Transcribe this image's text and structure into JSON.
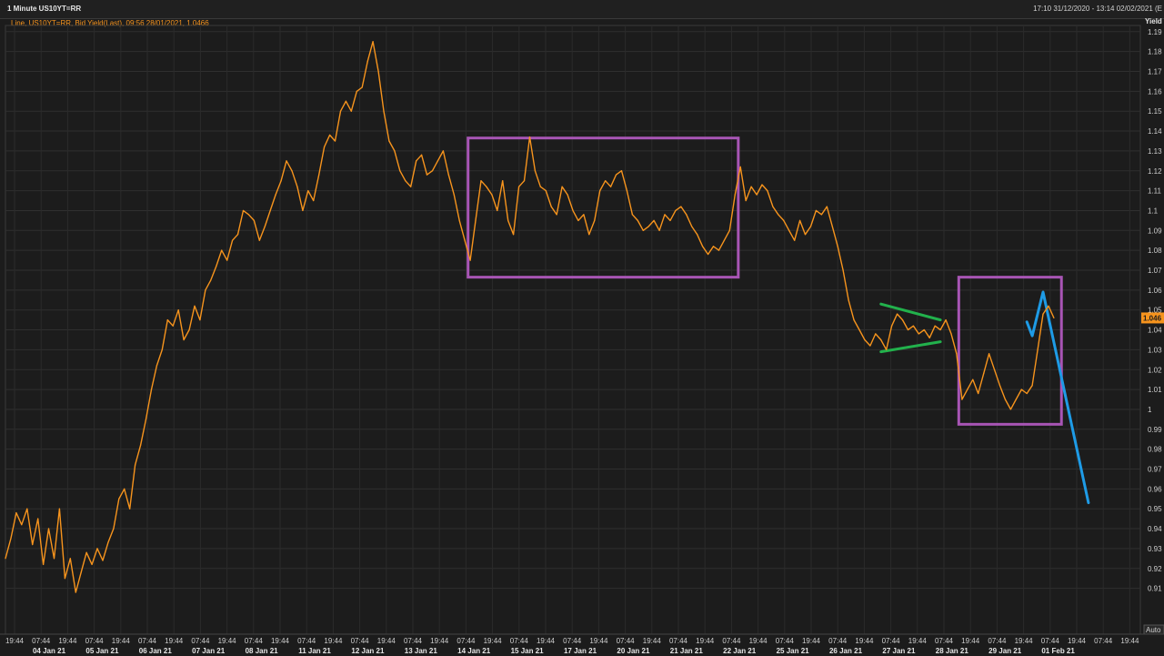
{
  "window": {
    "title": "1 Minute US10YT=RR",
    "date_range": "17:10 31/12/2020 - 13:14 02/02/2021 (E"
  },
  "legend": {
    "text": "Line, US10YT=RR, Bid Yield(Last), 09:56 28/01/2021, 1.0466"
  },
  "colors": {
    "background": "#1c1c1c",
    "line": "#f7941d",
    "rectangles": "#a855b5",
    "triangle": "#22b14c",
    "projection": "#1e9be6",
    "last_value_badge": "#f7941d"
  },
  "chart_data": {
    "type": "line",
    "title": "",
    "ylabel": "Yield",
    "ylim": [
      0.904,
      1.195
    ],
    "grid": true,
    "y_ticks": [
      1.19,
      1.18,
      1.17,
      1.16,
      1.15,
      1.14,
      1.13,
      1.12,
      1.11,
      1.1,
      1.09,
      1.08,
      1.07,
      1.06,
      1.05,
      1.04,
      1.03,
      1.02,
      1.01,
      1,
      0.99,
      0.98,
      0.97,
      0.96,
      0.95,
      0.94,
      0.93,
      0.92,
      0.91
    ],
    "y_tick_labels": [
      "1.19",
      "1.18",
      "1.17",
      "1.16",
      "1.15",
      "1.14",
      "1.13",
      "1.12",
      "1.11",
      "1.1",
      "1.09",
      "1.08",
      "1.07",
      "1.06",
      "1.05",
      "1.04",
      "1.03",
      "1.02",
      "1.01",
      "1",
      "0.99",
      "0.98",
      "0.97",
      "0.96",
      "0.95",
      "0.94",
      "0.93",
      "0.92",
      "0.91"
    ],
    "last_value_label": "1.046",
    "last_value": 1.046,
    "corner_label": "Auto",
    "x_time_labels": [
      "19:44",
      "07:44",
      "19:44",
      "07:44",
      "19:44",
      "07:44",
      "19:44",
      "07:44",
      "19:44",
      "07:44",
      "19:44",
      "07:44",
      "19:44",
      "07:44",
      "19:44",
      "07:44",
      "19:44",
      "07:44",
      "19:44",
      "07:44",
      "19:44",
      "07:44",
      "19:44",
      "07:44",
      "19:44",
      "07:44",
      "19:44",
      "07:44",
      "19:44",
      "07:44",
      "19:44",
      "07:44",
      "19:44",
      "07:44",
      "19:44",
      "07:44",
      "19:44",
      "07:44",
      "19:44",
      "07:44",
      "19:44",
      "07:44",
      "19:44"
    ],
    "x_date_labels": [
      "04 Jan 21",
      "05 Jan 21",
      "06 Jan 21",
      "07 Jan 21",
      "08 Jan 21",
      "11 Jan 21",
      "12 Jan 21",
      "13 Jan 21",
      "14 Jan 21",
      "15 Jan 21",
      "17 Jan 21",
      "20 Jan 21",
      "21 Jan 21",
      "22 Jan 21",
      "25 Jan 21",
      "26 Jan 21",
      "27 Jan 21",
      "28 Jan 21",
      "29 Jan 21",
      "01 Feb 21"
    ],
    "series": [
      {
        "values": [
          [
            0,
            0.925
          ],
          [
            0.5,
            0.935
          ],
          [
            1,
            0.948
          ],
          [
            1.5,
            0.942
          ],
          [
            2,
            0.95
          ],
          [
            2.5,
            0.932
          ],
          [
            3,
            0.945
          ],
          [
            3.5,
            0.922
          ],
          [
            4,
            0.94
          ],
          [
            4.5,
            0.925
          ],
          [
            5,
            0.95
          ],
          [
            5.5,
            0.915
          ],
          [
            6,
            0.925
          ],
          [
            6.5,
            0.908
          ],
          [
            7,
            0.918
          ],
          [
            7.5,
            0.928
          ],
          [
            8,
            0.922
          ],
          [
            8.5,
            0.93
          ],
          [
            9,
            0.924
          ],
          [
            9.5,
            0.933
          ],
          [
            10,
            0.94
          ],
          [
            10.5,
            0.955
          ],
          [
            11,
            0.96
          ],
          [
            11.5,
            0.95
          ],
          [
            12,
            0.972
          ],
          [
            12.5,
            0.982
          ],
          [
            13,
            0.995
          ],
          [
            13.5,
            1.01
          ],
          [
            14,
            1.022
          ],
          [
            14.5,
            1.03
          ],
          [
            15,
            1.045
          ],
          [
            15.5,
            1.042
          ],
          [
            16,
            1.05
          ],
          [
            16.5,
            1.035
          ],
          [
            17,
            1.04
          ],
          [
            17.5,
            1.052
          ],
          [
            18,
            1.045
          ],
          [
            18.5,
            1.06
          ],
          [
            19,
            1.065
          ],
          [
            19.5,
            1.072
          ],
          [
            20,
            1.08
          ],
          [
            20.5,
            1.075
          ],
          [
            21,
            1.085
          ],
          [
            21.5,
            1.088
          ],
          [
            22,
            1.1
          ],
          [
            22.5,
            1.098
          ],
          [
            23,
            1.095
          ],
          [
            23.5,
            1.085
          ],
          [
            24,
            1.092
          ],
          [
            24.5,
            1.1
          ],
          [
            25,
            1.108
          ],
          [
            25.5,
            1.115
          ],
          [
            26,
            1.125
          ],
          [
            26.5,
            1.12
          ],
          [
            27,
            1.112
          ],
          [
            27.5,
            1.1
          ],
          [
            28,
            1.11
          ],
          [
            28.5,
            1.105
          ],
          [
            29,
            1.118
          ],
          [
            29.5,
            1.132
          ],
          [
            30,
            1.138
          ],
          [
            30.5,
            1.135
          ],
          [
            31,
            1.15
          ],
          [
            31.5,
            1.155
          ],
          [
            32,
            1.15
          ],
          [
            32.5,
            1.16
          ],
          [
            33,
            1.162
          ],
          [
            33.5,
            1.175
          ],
          [
            34,
            1.185
          ],
          [
            34.5,
            1.17
          ],
          [
            35,
            1.15
          ],
          [
            35.5,
            1.135
          ],
          [
            36,
            1.13
          ],
          [
            36.5,
            1.12
          ],
          [
            37,
            1.115
          ],
          [
            37.5,
            1.112
          ],
          [
            38,
            1.125
          ],
          [
            38.5,
            1.128
          ],
          [
            39,
            1.118
          ],
          [
            39.5,
            1.12
          ],
          [
            40,
            1.125
          ],
          [
            40.5,
            1.13
          ],
          [
            41,
            1.118
          ],
          [
            41.5,
            1.108
          ],
          [
            42,
            1.095
          ],
          [
            42.5,
            1.085
          ],
          [
            43,
            1.075
          ],
          [
            43.5,
            1.095
          ],
          [
            44,
            1.115
          ],
          [
            44.5,
            1.112
          ],
          [
            45,
            1.108
          ],
          [
            45.5,
            1.1
          ],
          [
            46,
            1.115
          ],
          [
            46.5,
            1.095
          ],
          [
            47,
            1.088
          ],
          [
            47.5,
            1.112
          ],
          [
            48,
            1.115
          ],
          [
            48.5,
            1.137
          ],
          [
            49,
            1.12
          ],
          [
            49.5,
            1.112
          ],
          [
            50,
            1.11
          ],
          [
            50.5,
            1.102
          ],
          [
            51,
            1.098
          ],
          [
            51.5,
            1.112
          ],
          [
            52,
            1.108
          ],
          [
            52.5,
            1.1
          ],
          [
            53,
            1.095
          ],
          [
            53.5,
            1.098
          ],
          [
            54,
            1.088
          ],
          [
            54.5,
            1.095
          ],
          [
            55,
            1.11
          ],
          [
            55.5,
            1.115
          ],
          [
            56,
            1.112
          ],
          [
            56.5,
            1.118
          ],
          [
            57,
            1.12
          ],
          [
            57.5,
            1.11
          ],
          [
            58,
            1.098
          ],
          [
            58.5,
            1.095
          ],
          [
            59,
            1.09
          ],
          [
            59.5,
            1.092
          ],
          [
            60,
            1.095
          ],
          [
            60.5,
            1.09
          ],
          [
            61,
            1.098
          ],
          [
            61.5,
            1.095
          ],
          [
            62,
            1.1
          ],
          [
            62.5,
            1.102
          ],
          [
            63,
            1.098
          ],
          [
            63.5,
            1.092
          ],
          [
            64,
            1.088
          ],
          [
            64.5,
            1.082
          ],
          [
            65,
            1.078
          ],
          [
            65.5,
            1.082
          ],
          [
            66,
            1.08
          ],
          [
            66.5,
            1.085
          ],
          [
            67,
            1.09
          ],
          [
            67.5,
            1.108
          ],
          [
            68,
            1.122
          ],
          [
            68.5,
            1.105
          ],
          [
            69,
            1.112
          ],
          [
            69.5,
            1.108
          ],
          [
            70,
            1.113
          ],
          [
            70.5,
            1.11
          ],
          [
            71,
            1.102
          ],
          [
            71.5,
            1.098
          ],
          [
            72,
            1.095
          ],
          [
            72.5,
            1.09
          ],
          [
            73,
            1.085
          ],
          [
            73.5,
            1.095
          ],
          [
            74,
            1.088
          ],
          [
            74.5,
            1.092
          ],
          [
            75,
            1.1
          ],
          [
            75.5,
            1.098
          ],
          [
            76,
            1.102
          ],
          [
            76.5,
            1.092
          ],
          [
            77,
            1.082
          ],
          [
            77.5,
            1.07
          ],
          [
            78,
            1.055
          ],
          [
            78.5,
            1.045
          ],
          [
            79,
            1.04
          ],
          [
            79.5,
            1.035
          ],
          [
            80,
            1.032
          ],
          [
            80.5,
            1.038
          ],
          [
            81,
            1.035
          ],
          [
            81.5,
            1.03
          ],
          [
            82,
            1.042
          ],
          [
            82.5,
            1.048
          ],
          [
            83,
            1.045
          ],
          [
            83.5,
            1.04
          ],
          [
            84,
            1.042
          ],
          [
            84.5,
            1.038
          ],
          [
            85,
            1.04
          ],
          [
            85.5,
            1.036
          ],
          [
            86,
            1.042
          ],
          [
            86.5,
            1.04
          ],
          [
            87,
            1.045
          ],
          [
            87.5,
            1.038
          ],
          [
            88,
            1.028
          ],
          [
            88.5,
            1.005
          ],
          [
            89,
            1.01
          ],
          [
            89.5,
            1.015
          ],
          [
            90,
            1.008
          ],
          [
            90.5,
            1.018
          ],
          [
            91,
            1.028
          ],
          [
            91.5,
            1.02
          ],
          [
            92,
            1.012
          ],
          [
            92.5,
            1.005
          ],
          [
            93,
            1.0
          ],
          [
            93.5,
            1.005
          ],
          [
            94,
            1.01
          ],
          [
            94.5,
            1.008
          ],
          [
            95,
            1.012
          ],
          [
            95.5,
            1.03
          ],
          [
            96,
            1.048
          ],
          [
            96.5,
            1.052
          ],
          [
            97,
            1.046
          ]
        ]
      }
    ],
    "annotations": {
      "rect1": {
        "x0": 42.8,
        "x1": 67.8,
        "y0": 1.1365,
        "y1": 1.0665
      },
      "rect2": {
        "x0": 88.2,
        "x1": 97.7,
        "y0": 1.0665,
        "y1": 0.9925
      },
      "triangle_upper": [
        [
          81.0,
          1.053
        ],
        [
          86.5,
          1.045
        ]
      ],
      "triangle_lower": [
        [
          81.0,
          1.029
        ],
        [
          86.5,
          1.034
        ]
      ],
      "projection": [
        [
          94.5,
          1.044
        ],
        [
          95.0,
          1.037
        ],
        [
          96.0,
          1.059
        ],
        [
          100.2,
          0.953
        ]
      ]
    }
  }
}
